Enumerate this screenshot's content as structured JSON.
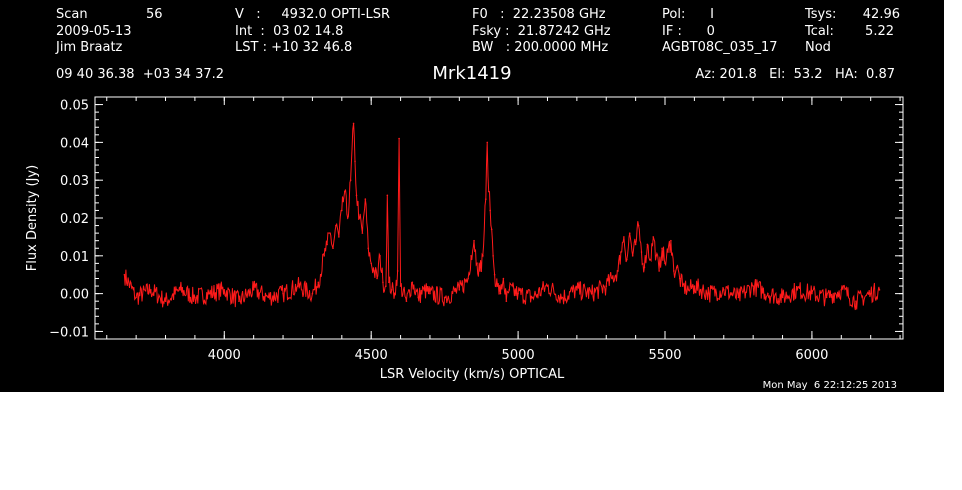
{
  "colors": {
    "background": "#000000",
    "foreground": "#ffffff",
    "trace": "#ff1a1a"
  },
  "header": {
    "col1": [
      "Scan",
      "2009-05-13",
      "Jim Braatz"
    ],
    "scan_number": "56",
    "col2": [
      "V   :     4932.0 OPTI-LSR",
      "Int  :  03 02 14.8",
      "LST : +10 32 46.8"
    ],
    "col3": [
      "F0   :  22.23508 GHz",
      "Fsky :  21.87242 GHz",
      "BW   : 200.0000 MHz"
    ],
    "col4": [
      "Pol:      I",
      "IF :      0",
      "AGBT08C_035_17"
    ],
    "col5a": [
      "Tsys:",
      "Tcal:",
      "Nod"
    ],
    "col5b": [
      "42.96",
      "5.22"
    ],
    "coords": "09 40 36.38  +03 34 37.2",
    "source": "Mrk1419",
    "azel": "Az: 201.8   El:  53.2   HA:  0.87",
    "timestamp": "Mon May  6 22:12:25 2013"
  },
  "chart_data": {
    "type": "line",
    "title": "Mrk1419",
    "xlabel": "LSR Velocity (km/s) OPTICAL",
    "ylabel": "Flux Density (Jy)",
    "xlim": [
      3560,
      6310
    ],
    "ylim": [
      -0.012,
      0.052
    ],
    "xticks": [
      4000,
      4500,
      5000,
      5500,
      6000
    ],
    "xtick_labels": [
      "4000",
      "4500",
      "5000",
      "5500",
      "6000"
    ],
    "yticks": [
      -0.01,
      0.0,
      0.01,
      0.02,
      0.03,
      0.04,
      0.05
    ],
    "ytick_labels": [
      "−0.01",
      "0.00",
      "0.01",
      "0.02",
      "0.03",
      "0.04",
      "0.05"
    ],
    "grid": false,
    "series": [
      {
        "x": [
          3660,
          3700,
          3750,
          3800,
          3850,
          3900,
          3950,
          4000,
          4050,
          4100,
          4150,
          4200,
          4250,
          4300,
          4320,
          4340,
          4350,
          4360,
          4370,
          4380,
          4390,
          4400,
          4410,
          4420,
          4430,
          4440,
          4445,
          4450,
          4460,
          4470,
          4480,
          4490,
          4500,
          4510,
          4520,
          4530,
          4540,
          4550,
          4555,
          4560,
          4570,
          4580,
          4590,
          4595,
          4600,
          4620,
          4640,
          4660,
          4680,
          4700,
          4750,
          4800,
          4830,
          4840,
          4850,
          4860,
          4870,
          4880,
          4890,
          4895,
          4900,
          4905,
          4910,
          4915,
          4920,
          4930,
          4940,
          4950,
          4960,
          4970,
          5000,
          5050,
          5100,
          5150,
          5200,
          5250,
          5300,
          5320,
          5340,
          5350,
          5360,
          5370,
          5380,
          5390,
          5400,
          5410,
          5420,
          5430,
          5440,
          5450,
          5460,
          5470,
          5480,
          5490,
          5500,
          5510,
          5520,
          5530,
          5540,
          5550,
          5560,
          5580,
          5600,
          5650,
          5700,
          5750,
          5800,
          5850,
          5900,
          5950,
          6000,
          6050,
          6100,
          6150,
          6200,
          6230
        ],
        "y": [
          0.005,
          -0.001,
          0.001,
          -0.002,
          0.001,
          -0.001,
          0.0,
          0.001,
          -0.002,
          0.001,
          -0.001,
          0.0,
          0.002,
          0.0,
          0.003,
          0.01,
          0.013,
          0.016,
          0.012,
          0.018,
          0.015,
          0.022,
          0.027,
          0.02,
          0.03,
          0.045,
          0.035,
          0.026,
          0.02,
          0.016,
          0.025,
          0.012,
          0.008,
          0.006,
          0.004,
          0.01,
          0.003,
          0.002,
          0.026,
          0.003,
          0.001,
          0.0,
          0.006,
          0.041,
          0.002,
          -0.002,
          0.003,
          -0.001,
          0.001,
          0.0,
          -0.001,
          0.001,
          0.004,
          0.01,
          0.014,
          0.008,
          0.006,
          0.01,
          0.025,
          0.04,
          0.027,
          0.022,
          0.017,
          0.01,
          0.005,
          0.002,
          0.0,
          0.004,
          -0.002,
          0.001,
          0.0,
          -0.001,
          0.002,
          -0.001,
          0.001,
          0.0,
          0.002,
          0.004,
          0.006,
          0.011,
          0.015,
          0.009,
          0.016,
          0.01,
          0.013,
          0.018,
          0.011,
          0.007,
          0.013,
          0.009,
          0.015,
          0.01,
          0.006,
          0.012,
          0.008,
          0.011,
          0.014,
          0.006,
          0.007,
          0.004,
          0.002,
          0.001,
          0.002,
          0.0,
          0.001,
          -0.001,
          0.002,
          0.0,
          -0.001,
          0.001,
          0.0,
          -0.001,
          0.001,
          -0.002,
          0.0,
          0.001
        ]
      }
    ]
  }
}
